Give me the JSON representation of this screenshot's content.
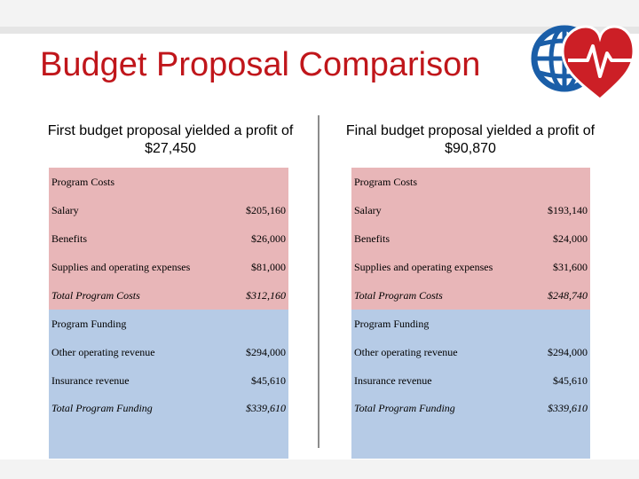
{
  "slide": {
    "title": "Budget Proposal Comparison",
    "logo": {
      "icons": [
        "globe-icon",
        "heart-icon",
        "heartbeat-line-icon"
      ],
      "colors": {
        "globe": "#1a5ea8",
        "heart": "#cc1f26"
      }
    }
  },
  "left": {
    "subtitle": "First budget proposal yielded a profit of $27,450",
    "costs_header": "Program Costs",
    "costs": [
      {
        "label": "Salary",
        "value": "$205,160"
      },
      {
        "label": "Benefits",
        "value": "$26,000"
      },
      {
        "label": "Supplies and operating expenses",
        "value": "$81,000"
      }
    ],
    "total_costs": {
      "label": "Total Program Costs",
      "value": "$312,160"
    },
    "funding_header": "Program Funding",
    "funding": [
      {
        "label": "Other operating revenue",
        "value": "$294,000"
      },
      {
        "label": "Insurance revenue",
        "value": "$45,610"
      }
    ],
    "total_funding": {
      "label": "Total Program Funding",
      "value": "$339,610"
    }
  },
  "right": {
    "subtitle": "Final budget proposal yielded a profit of $90,870",
    "costs_header": "Program Costs",
    "costs": [
      {
        "label": "Salary",
        "value": "$193,140"
      },
      {
        "label": "Benefits",
        "value": "$24,000"
      },
      {
        "label": "Supplies and operating expenses",
        "value": "$31,600"
      }
    ],
    "total_costs": {
      "label": "Total Program Costs",
      "value": "$248,740"
    },
    "funding_header": "Program Funding",
    "funding": [
      {
        "label": "Other operating revenue",
        "value": "$294,000"
      },
      {
        "label": "Insurance revenue",
        "value": "$45,610"
      }
    ],
    "total_funding": {
      "label": "Total Program Funding",
      "value": "$339,610"
    }
  },
  "colors": {
    "title": "#c0161b",
    "costs_fill": "#e8b6b8",
    "funding_fill": "#b6cbe6"
  }
}
